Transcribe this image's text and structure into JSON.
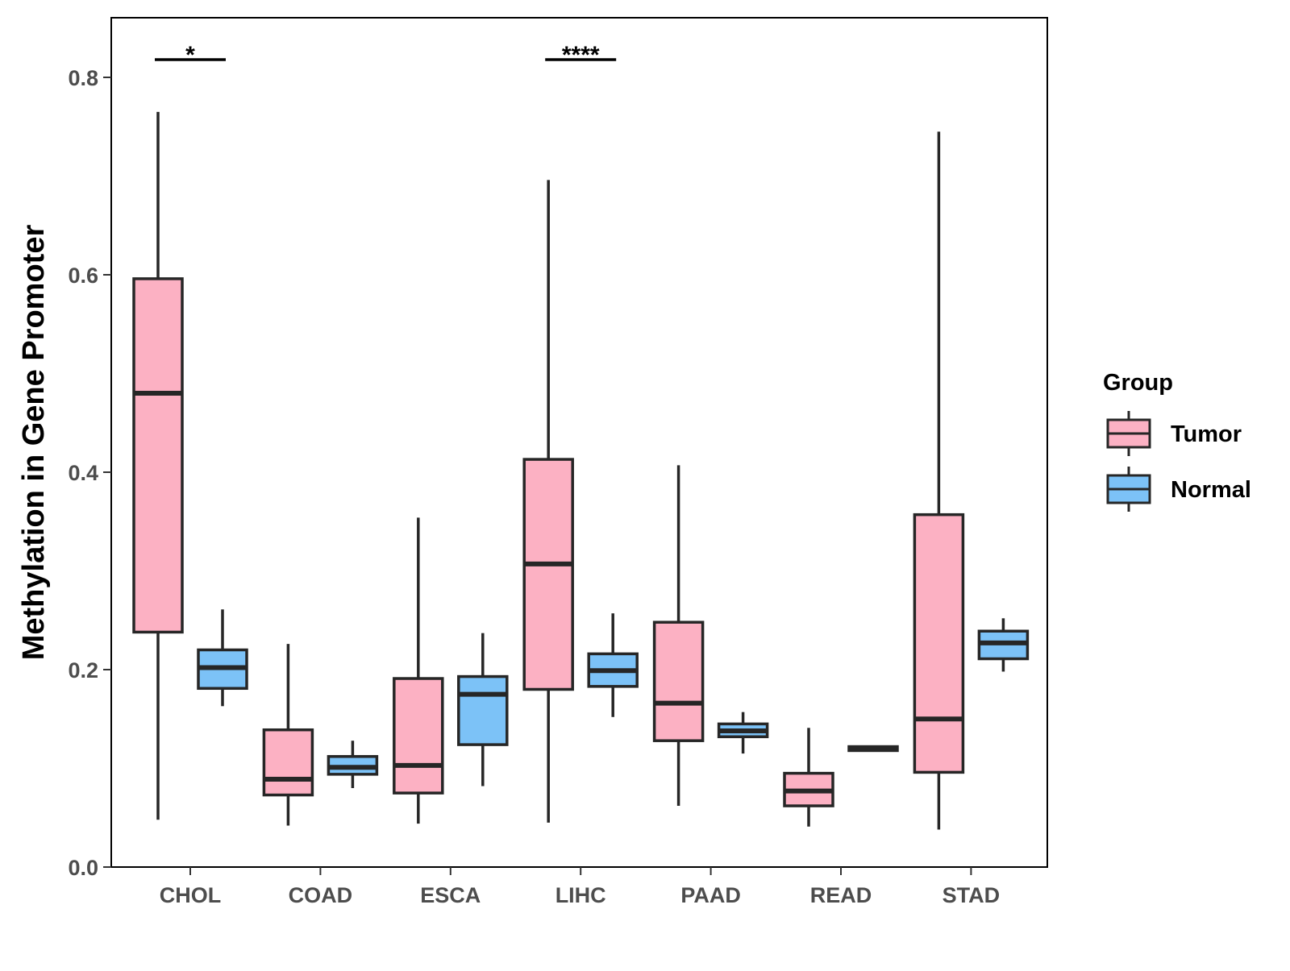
{
  "chart_data": {
    "type": "boxplot",
    "title": "",
    "xlabel": "",
    "ylabel": "Methylation in Gene Promoter",
    "ylim": [
      0,
      0.86
    ],
    "yticks": [
      0.0,
      0.2,
      0.4,
      0.6,
      0.8
    ],
    "ytick_labels": [
      "0.0",
      "0.2",
      "0.4",
      "0.6",
      "0.8"
    ],
    "categories": [
      "CHOL",
      "COAD",
      "ESCA",
      "LIHC",
      "PAAD",
      "READ",
      "STAD"
    ],
    "legend": {
      "title": "Group",
      "position": "right",
      "entries": [
        {
          "name": "Tumor",
          "color": "#fcb1c3"
        },
        {
          "name": "Normal",
          "color": "#7cc2f7"
        }
      ]
    },
    "series": [
      {
        "name": "Tumor",
        "color": "#fcb1c3",
        "boxes": [
          {
            "min": 0.048,
            "q1": 0.238,
            "median": 0.48,
            "q3": 0.596,
            "max": 0.765
          },
          {
            "min": 0.042,
            "q1": 0.073,
            "median": 0.089,
            "q3": 0.139,
            "max": 0.226
          },
          {
            "min": 0.044,
            "q1": 0.075,
            "median": 0.103,
            "q3": 0.191,
            "max": 0.354
          },
          {
            "min": 0.045,
            "q1": 0.18,
            "median": 0.307,
            "q3": 0.413,
            "max": 0.696
          },
          {
            "min": 0.062,
            "q1": 0.128,
            "median": 0.166,
            "q3": 0.248,
            "max": 0.407
          },
          {
            "min": 0.041,
            "q1": 0.062,
            "median": 0.077,
            "q3": 0.095,
            "max": 0.141
          },
          {
            "min": 0.038,
            "q1": 0.096,
            "median": 0.15,
            "q3": 0.357,
            "max": 0.745
          }
        ]
      },
      {
        "name": "Normal",
        "color": "#7cc2f7",
        "boxes": [
          {
            "min": 0.163,
            "q1": 0.181,
            "median": 0.202,
            "q3": 0.22,
            "max": 0.261
          },
          {
            "min": 0.08,
            "q1": 0.094,
            "median": 0.101,
            "q3": 0.112,
            "max": 0.128
          },
          {
            "min": 0.082,
            "q1": 0.124,
            "median": 0.175,
            "q3": 0.193,
            "max": 0.237
          },
          {
            "min": 0.152,
            "q1": 0.183,
            "median": 0.199,
            "q3": 0.216,
            "max": 0.257
          },
          {
            "min": 0.115,
            "q1": 0.132,
            "median": 0.138,
            "q3": 0.145,
            "max": 0.157
          },
          {
            "min": 0.117,
            "q1": 0.118,
            "median": 0.12,
            "q3": 0.122,
            "max": 0.123
          },
          {
            "min": 0.198,
            "q1": 0.211,
            "median": 0.227,
            "q3": 0.239,
            "max": 0.252
          }
        ]
      }
    ],
    "annotations": [
      {
        "category": "CHOL",
        "text": "*",
        "y": 0.818
      },
      {
        "category": "LIHC",
        "text": "****",
        "y": 0.818
      }
    ]
  }
}
